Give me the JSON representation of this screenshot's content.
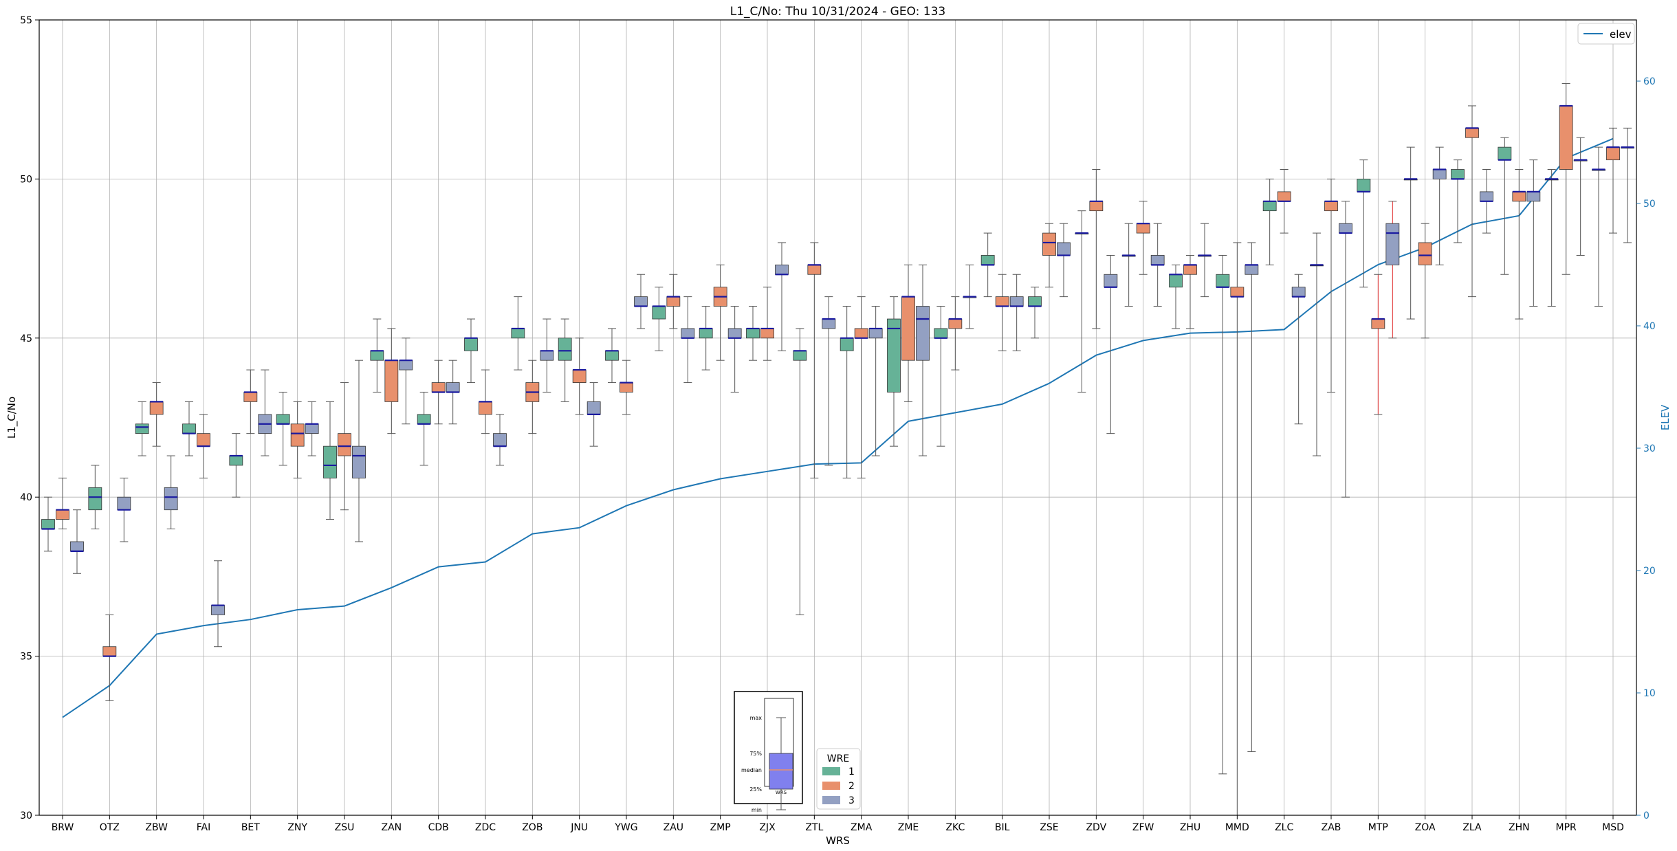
{
  "chart_data": {
    "type": "box",
    "title": "L1_C/No: Thu 10/31/2024 - GEO: 133",
    "xlabel": "WRS",
    "ylabel": "L1_C/No",
    "y2label": "ELEV",
    "ylim": [
      30,
      55
    ],
    "y2lim": [
      0,
      65
    ],
    "yticks": [
      30,
      35,
      40,
      45,
      50,
      55
    ],
    "y2ticks": [
      0,
      10,
      20,
      30,
      40,
      50,
      60
    ],
    "grid": true,
    "categories": [
      "BRW",
      "OTZ",
      "ZBW",
      "FAI",
      "BET",
      "ZNY",
      "ZSU",
      "ZAN",
      "CDB",
      "ZDC",
      "ZOB",
      "JNU",
      "YWG",
      "ZAU",
      "ZMP",
      "ZJX",
      "ZTL",
      "ZMA",
      "ZME",
      "ZKC",
      "BIL",
      "ZSE",
      "ZDV",
      "ZFW",
      "ZHU",
      "MMD",
      "ZLC",
      "ZAB",
      "MTP",
      "ZOA",
      "ZLA",
      "ZHN",
      "MPR",
      "MSD"
    ],
    "wre_legend": {
      "title": "WRE",
      "entries": [
        {
          "name": "1",
          "color": "#66b297"
        },
        {
          "name": "2",
          "color": "#e8906c"
        },
        {
          "name": "3",
          "color": "#93a0c2"
        }
      ]
    },
    "line_series": {
      "name": "elev",
      "color": "#1f77b4",
      "values": [
        8,
        10.6,
        14.8,
        15.5,
        16,
        16.8,
        17.1,
        18.6,
        20.3,
        20.7,
        23,
        23.5,
        25.3,
        26.6,
        27.5,
        28.1,
        28.7,
        28.8,
        32.2,
        32.9,
        33.6,
        35.3,
        37.6,
        38.8,
        39.4,
        39.5,
        39.7,
        42.8,
        45,
        46.4,
        48.3,
        49,
        53.7,
        55.3
      ]
    },
    "box_series": [
      {
        "wre": "1",
        "boxes": [
          [
            0,
            38.3,
            39.0,
            39.0,
            39.3,
            40.0
          ],
          [
            1,
            39.0,
            39.6,
            40.0,
            40.3,
            41.0
          ],
          [
            2,
            41.3,
            42.0,
            42.2,
            42.3,
            43.0
          ],
          [
            3,
            41.3,
            42.0,
            42.0,
            42.3,
            43.0
          ],
          [
            4,
            40.0,
            41.0,
            41.3,
            41.3,
            42.0
          ],
          [
            5,
            41.0,
            42.3,
            42.3,
            42.6,
            43.3
          ],
          [
            6,
            39.3,
            40.6,
            41.0,
            41.6,
            43.0
          ],
          [
            7,
            43.3,
            44.3,
            44.6,
            44.6,
            45.6
          ],
          [
            8,
            41.0,
            42.3,
            42.3,
            42.6,
            43.3
          ],
          [
            9,
            43.6,
            44.6,
            45.0,
            45.0,
            45.6
          ],
          [
            10,
            44.0,
            45.0,
            45.3,
            45.3,
            46.3
          ],
          [
            11,
            43.0,
            44.3,
            44.6,
            45.0,
            45.6
          ],
          [
            12,
            43.6,
            44.3,
            44.6,
            44.6,
            45.3
          ],
          [
            13,
            44.6,
            45.6,
            46.0,
            46.0,
            46.6
          ],
          [
            14,
            44.0,
            45.0,
            45.3,
            45.3,
            46.0
          ],
          [
            15,
            44.3,
            45.0,
            45.3,
            45.3,
            46.0
          ],
          [
            16,
            36.3,
            44.3,
            44.6,
            44.6,
            45.3
          ],
          [
            17,
            40.6,
            44.6,
            45.0,
            45.0,
            46.0
          ],
          [
            18,
            41.6,
            43.3,
            45.3,
            45.6,
            46.3
          ],
          [
            19,
            41.6,
            45.0,
            45.0,
            45.3,
            46.0
          ],
          [
            20,
            46.3,
            47.3,
            47.3,
            47.6,
            48.3
          ],
          [
            21,
            45.0,
            46.0,
            46.0,
            46.3,
            46.6
          ],
          [
            22,
            43.3,
            48.3,
            48.3,
            48.3,
            49.0
          ],
          [
            23,
            46.0,
            47.6,
            47.6,
            47.6,
            48.6
          ],
          [
            24,
            45.3,
            46.6,
            47.0,
            47.0,
            47.3
          ],
          [
            25,
            31.3,
            46.6,
            46.6,
            47.0,
            47.6
          ],
          [
            26,
            47.3,
            49.0,
            49.3,
            49.3,
            50.0
          ],
          [
            27,
            41.3,
            47.3,
            47.3,
            47.3,
            48.3
          ],
          [
            28,
            46.6,
            49.6,
            49.6,
            50.0,
            50.6
          ],
          [
            29,
            45.6,
            50.0,
            50.0,
            50.0,
            51.0
          ],
          [
            30,
            48.0,
            50.0,
            50.0,
            50.3,
            50.6
          ],
          [
            31,
            47.0,
            50.6,
            50.6,
            51.0,
            51.3
          ],
          [
            32,
            46.0,
            50.0,
            50.0,
            50.0,
            50.3
          ],
          [
            33,
            46.0,
            50.3,
            50.3,
            50.3,
            51.0
          ]
        ]
      },
      {
        "wre": "2",
        "boxes": [
          [
            0,
            39.0,
            39.3,
            39.6,
            39.6,
            40.6
          ],
          [
            1,
            33.6,
            35.0,
            35.0,
            35.3,
            36.3
          ],
          [
            2,
            41.6,
            42.6,
            43.0,
            43.0,
            43.6
          ],
          [
            3,
            40.6,
            41.6,
            41.6,
            42.0,
            42.6
          ],
          [
            4,
            42.0,
            43.0,
            43.3,
            43.3,
            44.0
          ],
          [
            5,
            40.6,
            41.6,
            42.0,
            42.3,
            43.0
          ],
          [
            6,
            39.6,
            41.3,
            41.6,
            42.0,
            43.6
          ],
          [
            7,
            42.0,
            43.0,
            44.3,
            44.3,
            45.3
          ],
          [
            8,
            42.3,
            43.3,
            43.3,
            43.6,
            44.3
          ],
          [
            9,
            42.0,
            42.6,
            43.0,
            43.0,
            44.0
          ],
          [
            10,
            42.0,
            43.0,
            43.3,
            43.6,
            44.3
          ],
          [
            11,
            42.6,
            43.6,
            44.0,
            44.0,
            45.0
          ],
          [
            12,
            42.6,
            43.3,
            43.6,
            43.6,
            44.3
          ],
          [
            13,
            45.3,
            46.0,
            46.3,
            46.3,
            47.0
          ],
          [
            14,
            44.3,
            46.0,
            46.3,
            46.6,
            47.3
          ],
          [
            15,
            44.3,
            45.0,
            45.3,
            45.3,
            46.6
          ],
          [
            16,
            40.6,
            47.0,
            47.3,
            47.3,
            48.0
          ],
          [
            17,
            40.6,
            45.0,
            45.0,
            45.3,
            46.3
          ],
          [
            18,
            43.0,
            44.3,
            46.3,
            46.3,
            47.3
          ],
          [
            19,
            44.0,
            45.3,
            45.6,
            45.6,
            46.3
          ],
          [
            20,
            44.6,
            46.0,
            46.0,
            46.3,
            47.0
          ],
          [
            21,
            46.6,
            47.6,
            48.0,
            48.3,
            48.6
          ],
          [
            22,
            45.3,
            49.0,
            49.3,
            49.3,
            50.3
          ],
          [
            23,
            47.0,
            48.3,
            48.6,
            48.6,
            49.3
          ],
          [
            24,
            45.3,
            47.0,
            47.3,
            47.3,
            47.6
          ],
          [
            25,
            30.0,
            46.3,
            46.3,
            46.6,
            48.0
          ],
          [
            26,
            48.3,
            49.3,
            49.3,
            49.6,
            50.3
          ],
          [
            27,
            43.3,
            49.0,
            49.3,
            49.3,
            50.0
          ],
          [
            28,
            42.6,
            45.3,
            45.6,
            45.6,
            47.0
          ],
          [
            29,
            45.0,
            47.3,
            47.6,
            48.0,
            48.6
          ],
          [
            30,
            46.3,
            51.3,
            51.6,
            51.6,
            52.3
          ],
          [
            31,
            45.6,
            49.3,
            49.6,
            49.6,
            50.3
          ],
          [
            32,
            47.0,
            50.3,
            52.3,
            52.3,
            53.0
          ],
          [
            33,
            48.3,
            50.6,
            51.0,
            51.0,
            51.6
          ]
        ]
      },
      {
        "wre": "3",
        "boxes": [
          [
            0,
            37.6,
            38.3,
            38.3,
            38.6,
            39.6
          ],
          [
            1,
            38.6,
            39.6,
            39.6,
            40.0,
            40.6
          ],
          [
            2,
            39.0,
            39.6,
            40.0,
            40.3,
            41.3
          ],
          [
            3,
            35.3,
            36.3,
            36.6,
            36.6,
            38.0
          ],
          [
            4,
            41.3,
            42.0,
            42.3,
            42.6,
            44.0
          ],
          [
            5,
            41.3,
            42.0,
            42.3,
            42.3,
            43.0
          ],
          [
            6,
            38.6,
            40.6,
            41.3,
            41.6,
            44.3
          ],
          [
            7,
            42.3,
            44.0,
            44.3,
            44.3,
            45.0
          ],
          [
            8,
            42.3,
            43.3,
            43.3,
            43.6,
            44.3
          ],
          [
            9,
            41.0,
            41.6,
            41.6,
            42.0,
            42.6
          ],
          [
            10,
            43.3,
            44.3,
            44.6,
            44.6,
            45.6
          ],
          [
            11,
            41.6,
            42.6,
            42.6,
            43.0,
            43.6
          ],
          [
            12,
            45.3,
            46.0,
            46.0,
            46.3,
            47.0
          ],
          [
            13,
            43.6,
            45.0,
            45.0,
            45.3,
            46.3
          ],
          [
            14,
            43.3,
            45.0,
            45.0,
            45.3,
            46.0
          ],
          [
            15,
            44.6,
            47.0,
            47.0,
            47.3,
            48.0
          ],
          [
            16,
            41.0,
            45.3,
            45.6,
            45.6,
            46.3
          ],
          [
            17,
            41.3,
            45.0,
            45.3,
            45.3,
            46.0
          ],
          [
            18,
            41.3,
            44.3,
            45.6,
            46.0,
            47.3
          ],
          [
            19,
            45.3,
            46.3,
            46.3,
            46.3,
            47.3
          ],
          [
            20,
            44.6,
            46.0,
            46.0,
            46.3,
            47.0
          ],
          [
            21,
            46.3,
            47.6,
            47.6,
            48.0,
            48.6
          ],
          [
            22,
            42.0,
            46.6,
            46.6,
            47.0,
            47.6
          ],
          [
            23,
            46.0,
            47.3,
            47.3,
            47.6,
            48.6
          ],
          [
            24,
            46.3,
            47.6,
            47.6,
            47.6,
            48.6
          ],
          [
            25,
            32.0,
            47.0,
            47.3,
            47.3,
            48.0
          ],
          [
            26,
            42.3,
            46.3,
            46.3,
            46.6,
            47.0
          ],
          [
            27,
            40.0,
            48.3,
            48.3,
            48.6,
            49.3
          ],
          [
            28,
            45.0,
            47.3,
            48.3,
            48.6,
            49.3
          ],
          [
            29,
            47.3,
            50.0,
            50.3,
            50.3,
            51.0
          ],
          [
            30,
            48.3,
            49.3,
            49.3,
            49.6,
            50.3
          ],
          [
            31,
            46.0,
            49.3,
            49.6,
            49.6,
            50.6
          ],
          [
            32,
            47.6,
            50.6,
            50.6,
            50.6,
            51.3
          ],
          [
            33,
            48.0,
            51.0,
            51.0,
            51.0,
            51.6
          ]
        ]
      }
    ],
    "red_whisker_boxes": [
      [
        28,
        2
      ],
      [
        28,
        3
      ]
    ],
    "box_key": {
      "labels": [
        "max",
        "75%",
        "median",
        "25%",
        "min"
      ],
      "xlabel": "WRS",
      "stats": [
        32.6,
        34.0,
        34.6,
        35.3,
        35.9
      ],
      "color": "#8080ee"
    },
    "line_legend_label": "elev"
  }
}
